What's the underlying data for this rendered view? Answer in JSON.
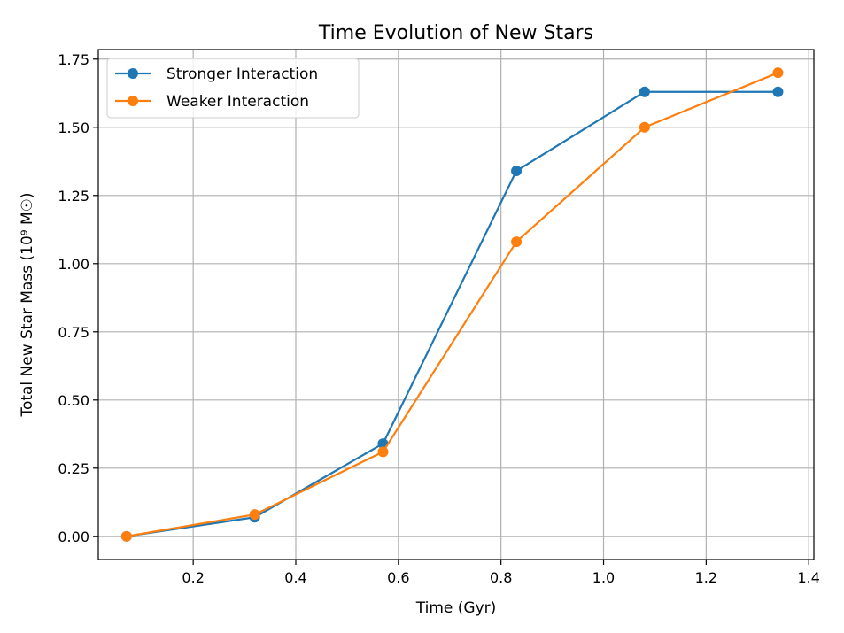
{
  "chart_data": {
    "type": "line",
    "title": "Time Evolution of New Stars",
    "xlabel": "Time (Gyr)",
    "ylabel": "Total New Star Mass (10⁹ M☉)",
    "xlim": [
      0.015,
      1.41
    ],
    "ylim": [
      -0.085,
      1.785
    ],
    "xticks": [
      0.2,
      0.4,
      0.6,
      0.8,
      1.0,
      1.2,
      1.4
    ],
    "xtick_labels": [
      "0.2",
      "0.4",
      "0.6",
      "0.8",
      "1.0",
      "1.2",
      "1.4"
    ],
    "yticks": [
      0.0,
      0.25,
      0.5,
      0.75,
      1.0,
      1.25,
      1.5,
      1.75
    ],
    "ytick_labels": [
      "0.00",
      "0.25",
      "0.50",
      "0.75",
      "1.00",
      "1.25",
      "1.50",
      "1.75"
    ],
    "grid": true,
    "legend_position": "top-left",
    "x": [
      0.07,
      0.32,
      0.57,
      0.83,
      1.08,
      1.34
    ],
    "series": [
      {
        "name": "Stronger Interaction",
        "color": "#1f77b4",
        "values": [
          0.0,
          0.07,
          0.34,
          1.34,
          1.63,
          1.63
        ]
      },
      {
        "name": "Weaker Interaction",
        "color": "#ff7f0e",
        "values": [
          0.0,
          0.08,
          0.31,
          1.08,
          1.5,
          1.7
        ]
      }
    ]
  }
}
